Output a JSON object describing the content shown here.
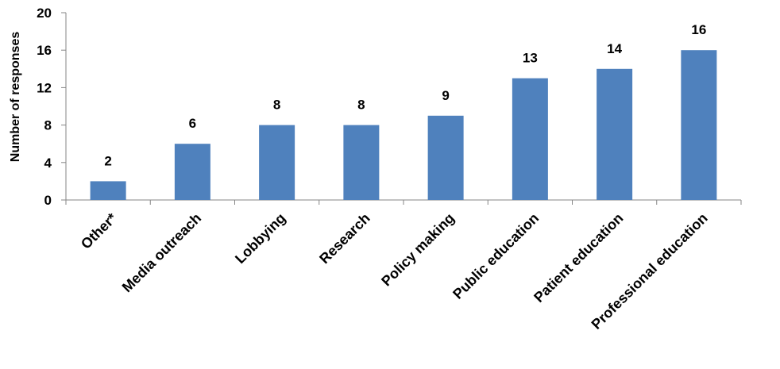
{
  "chart_data": {
    "type": "bar",
    "title": "",
    "xlabel": "",
    "ylabel": "Number of responses",
    "categories": [
      "Other*",
      "Media outreach",
      "Lobbying",
      "Research",
      "Policy making",
      "Public education",
      "Patient education",
      "Professional education"
    ],
    "values": [
      2,
      6,
      8,
      8,
      9,
      13,
      14,
      16
    ],
    "ylim": [
      0,
      20
    ],
    "yticks": [
      "0",
      "4",
      "8",
      "12",
      "16",
      "20"
    ],
    "grid": false,
    "legend": "none",
    "bar_color": "#4F81BD",
    "axis_color": "#868686"
  }
}
